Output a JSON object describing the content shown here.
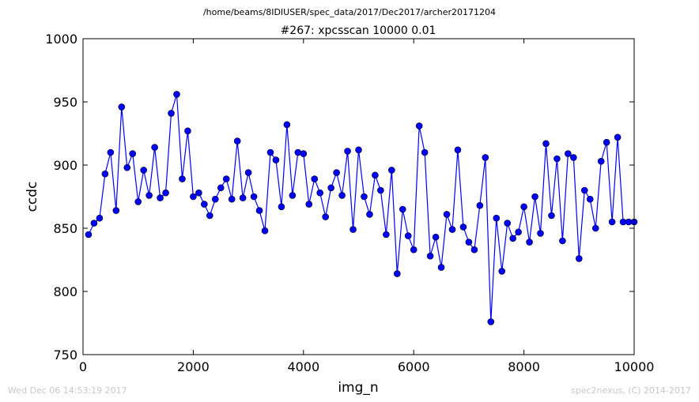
{
  "header": {
    "suptitle": "/home/beams/8IDIUSER/spec_data/2017/Dec2017/archer20171204",
    "title": "#267: xpcsscan 10000 0.01"
  },
  "footer": {
    "timestamp": "Wed Dec 06 14:53:19 2017",
    "credit": "spec2nexus, (C) 2014-2017"
  },
  "chart_data": {
    "type": "line",
    "title": "#267: xpcsscan 10000 0.01",
    "xlabel": "img_n",
    "ylabel": "ccdc",
    "xlim": [
      0,
      10000
    ],
    "ylim": [
      750,
      1000
    ],
    "xticks": [
      0,
      2000,
      4000,
      6000,
      8000,
      10000
    ],
    "yticks": [
      750,
      800,
      850,
      900,
      950,
      1000
    ],
    "xtick_labels": [
      "0",
      "2000",
      "4000",
      "6000",
      "8000",
      "10000"
    ],
    "ytick_labels": [
      "750",
      "800",
      "850",
      "900",
      "950",
      "1000"
    ],
    "grid": false,
    "legend": "none",
    "series": [
      {
        "color": "#0000ff",
        "marker": "circle",
        "x": [
          100,
          200,
          300,
          400,
          500,
          600,
          700,
          800,
          900,
          1000,
          1100,
          1200,
          1300,
          1400,
          1500,
          1600,
          1700,
          1800,
          1900,
          2000,
          2100,
          2200,
          2300,
          2400,
          2500,
          2600,
          2700,
          2800,
          2900,
          3000,
          3100,
          3200,
          3300,
          3400,
          3500,
          3600,
          3700,
          3800,
          3900,
          4000,
          4100,
          4200,
          4300,
          4400,
          4500,
          4600,
          4700,
          4800,
          4900,
          5000,
          5100,
          5200,
          5300,
          5400,
          5500,
          5600,
          5700,
          5800,
          5900,
          6000,
          6100,
          6200,
          6300,
          6400,
          6500,
          6600,
          6700,
          6800,
          6900,
          7000,
          7100,
          7200,
          7300,
          7400,
          7500,
          7600,
          7700,
          7800,
          7900,
          8000,
          8100,
          8200,
          8300,
          8400,
          8500,
          8600,
          8700,
          8800,
          8900,
          9000,
          9100,
          9200,
          9300,
          9400,
          9500,
          9600,
          9700,
          9800,
          9900,
          10000
        ],
        "y": [
          845,
          854,
          858,
          893,
          910,
          864,
          946,
          898,
          909,
          871,
          896,
          876,
          914,
          874,
          878,
          941,
          956,
          889,
          927,
          875,
          878,
          869,
          860,
          873,
          882,
          889,
          873,
          919,
          874,
          894,
          875,
          864,
          848,
          910,
          904,
          867,
          932,
          876,
          910,
          909,
          869,
          889,
          878,
          859,
          882,
          894,
          876,
          911,
          849,
          912,
          875,
          861,
          892,
          880,
          845,
          896,
          814,
          865,
          844,
          833,
          931,
          910,
          828,
          843,
          819,
          861,
          849,
          912,
          851,
          839,
          833,
          868,
          906,
          776,
          858,
          816,
          854,
          842,
          847,
          867,
          839,
          875,
          846,
          917,
          860,
          905,
          840,
          909,
          906,
          826,
          880,
          873,
          850,
          903,
          918,
          855,
          922,
          855,
          855,
          855
        ]
      }
    ]
  }
}
